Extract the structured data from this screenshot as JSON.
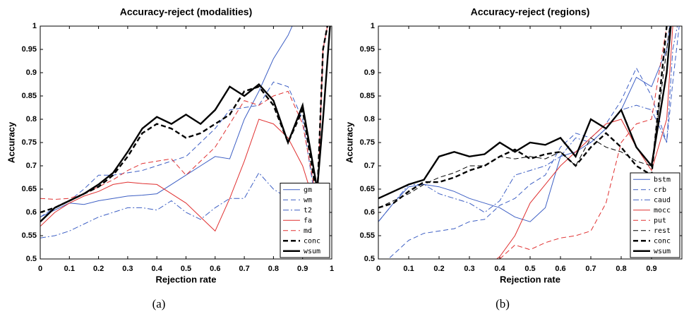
{
  "chart_data": [
    {
      "type": "line",
      "title": "Accuracy-reject (modalities)",
      "xlabel": "Rejection rate",
      "ylabel": "Accuracy",
      "caption": "(a)",
      "x": [
        0,
        0.05,
        0.1,
        0.15,
        0.2,
        0.25,
        0.3,
        0.35,
        0.4,
        0.45,
        0.5,
        0.55,
        0.6,
        0.65,
        0.7,
        0.75,
        0.8,
        0.85,
        0.9,
        0.95,
        0.97,
        1
      ],
      "xlim": [
        0,
        1
      ],
      "xticks": [
        0,
        0.1,
        0.2,
        0.3,
        0.4,
        0.5,
        0.6,
        0.7,
        0.8,
        0.9,
        1
      ],
      "ylim": [
        0.5,
        1
      ],
      "yticks": [
        0.5,
        0.55,
        0.6,
        0.65,
        0.7,
        0.75,
        0.8,
        0.85,
        0.9,
        0.95,
        1
      ],
      "legend": "lower right",
      "series": [
        {
          "name": "gm",
          "color": "#3d5fc4",
          "linestyle": "solid",
          "thick": false,
          "values": [
            0.59,
            0.605,
            0.62,
            0.617,
            0.625,
            0.63,
            0.635,
            0.637,
            0.64,
            0.66,
            0.68,
            0.7,
            0.72,
            0.715,
            0.8,
            0.86,
            0.93,
            0.98,
            1.05,
            null,
            null,
            null
          ]
        },
        {
          "name": "wm",
          "color": "#3d5fc4",
          "linestyle": "dashed",
          "thick": false,
          "values": [
            0.59,
            0.61,
            0.625,
            0.65,
            0.68,
            0.68,
            0.685,
            0.69,
            0.7,
            0.71,
            0.72,
            0.75,
            0.78,
            0.82,
            0.825,
            0.83,
            0.88,
            0.87,
            0.8,
            0.6,
            0.95,
            1.05
          ]
        },
        {
          "name": "t2",
          "color": "#3d5fc4",
          "linestyle": "dashdot",
          "thick": false,
          "values": [
            0.545,
            0.55,
            0.56,
            0.575,
            0.59,
            0.6,
            0.61,
            0.61,
            0.605,
            0.625,
            0.6,
            0.585,
            0.61,
            0.63,
            0.63,
            0.685,
            0.65,
            0.63,
            0.66,
            0.6,
            0.95,
            1.05
          ]
        },
        {
          "name": "fa",
          "color": "#e03030",
          "linestyle": "solid",
          "thick": false,
          "values": [
            0.57,
            0.6,
            0.62,
            0.635,
            0.645,
            0.66,
            0.665,
            0.662,
            0.66,
            0.64,
            0.62,
            0.59,
            0.56,
            0.63,
            0.71,
            0.8,
            0.79,
            0.76,
            0.7,
            0.6,
            0.95,
            1.05
          ]
        },
        {
          "name": "md",
          "color": "#e03030",
          "linestyle": "dashed",
          "thick": false,
          "values": [
            0.63,
            0.628,
            0.63,
            0.64,
            0.655,
            0.67,
            0.69,
            0.705,
            0.71,
            0.715,
            0.68,
            0.71,
            0.74,
            0.79,
            0.84,
            0.83,
            0.85,
            0.86,
            0.79,
            0.62,
            0.95,
            1.05
          ]
        },
        {
          "name": "conc",
          "color": "#000000",
          "linestyle": "dashed",
          "thick": true,
          "values": [
            0.6,
            0.61,
            0.625,
            0.64,
            0.655,
            0.68,
            0.72,
            0.77,
            0.79,
            0.78,
            0.76,
            0.77,
            0.79,
            0.81,
            0.86,
            0.87,
            0.83,
            0.75,
            0.82,
            0.63,
            0.95,
            1.05
          ]
        },
        {
          "name": "wsum",
          "color": "#000000",
          "linestyle": "solid",
          "thick": true,
          "values": [
            0.58,
            0.61,
            0.625,
            0.64,
            0.66,
            0.685,
            0.73,
            0.78,
            0.805,
            0.79,
            0.81,
            0.79,
            0.82,
            0.87,
            0.85,
            0.875,
            0.84,
            0.75,
            0.83,
            0.65,
            0.8,
            1.05
          ]
        }
      ]
    },
    {
      "type": "line",
      "title": "Accuracy-reject (regions)",
      "xlabel": "Rejection rate",
      "ylabel": "Accuracy",
      "caption": "(b)",
      "x": [
        0,
        0.05,
        0.1,
        0.15,
        0.2,
        0.25,
        0.3,
        0.35,
        0.4,
        0.45,
        0.5,
        0.55,
        0.6,
        0.65,
        0.7,
        0.75,
        0.8,
        0.85,
        0.9,
        0.95,
        0.97,
        1
      ],
      "xlim": [
        0,
        1
      ],
      "xticks": [
        0,
        0.1,
        0.2,
        0.3,
        0.4,
        0.5,
        0.6,
        0.7,
        0.8,
        0.9
      ],
      "ylim": [
        0.5,
        1
      ],
      "yticks": [
        0.5,
        0.55,
        0.6,
        0.65,
        0.7,
        0.75,
        0.8,
        0.85,
        0.9,
        0.95,
        1
      ],
      "legend": "lower right",
      "series": [
        {
          "name": "bstm",
          "color": "#3d5fc4",
          "linestyle": "solid",
          "thick": false,
          "values": [
            0.58,
            0.62,
            0.655,
            0.66,
            0.655,
            0.645,
            0.63,
            0.62,
            0.61,
            0.59,
            0.58,
            0.61,
            0.72,
            0.73,
            0.75,
            0.78,
            0.82,
            0.89,
            0.87,
            0.95,
            1.05,
            null
          ]
        },
        {
          "name": "crb",
          "color": "#3d5fc4",
          "linestyle": "dashed",
          "thick": false,
          "values": [
            0.48,
            0.51,
            0.54,
            0.555,
            0.56,
            0.565,
            0.58,
            0.585,
            0.615,
            0.63,
            0.66,
            0.68,
            0.74,
            0.77,
            0.76,
            0.79,
            0.84,
            0.91,
            0.85,
            0.75,
            0.88,
            1.05
          ]
        },
        {
          "name": "caud",
          "color": "#3d5fc4",
          "linestyle": "dashdot",
          "thick": false,
          "values": [
            0.58,
            0.62,
            0.66,
            0.66,
            0.64,
            0.63,
            0.62,
            0.6,
            0.625,
            0.68,
            0.69,
            0.7,
            0.72,
            0.76,
            0.75,
            0.78,
            0.82,
            0.83,
            0.82,
            0.75,
            0.95,
            1.05
          ]
        },
        {
          "name": "mocc",
          "color": "#e03030",
          "linestyle": "solid",
          "thick": false,
          "values": [
            null,
            null,
            null,
            null,
            null,
            null,
            null,
            0.48,
            0.505,
            0.55,
            0.62,
            0.66,
            0.7,
            0.73,
            0.76,
            0.79,
            0.8,
            0.74,
            0.69,
            0.8,
            1.0,
            1.05
          ]
        },
        {
          "name": "put",
          "color": "#e03030",
          "linestyle": "dashed",
          "thick": false,
          "values": [
            null,
            null,
            null,
            null,
            null,
            null,
            null,
            null,
            0.5,
            0.53,
            0.52,
            0.535,
            0.545,
            0.55,
            0.56,
            0.62,
            0.75,
            0.79,
            0.8,
            1.0,
            1.05,
            null
          ]
        },
        {
          "name": "rest",
          "color": "#000000",
          "linestyle": "dashed",
          "thick": false,
          "values": [
            0.61,
            0.625,
            0.64,
            0.66,
            0.675,
            0.685,
            0.7,
            0.7,
            0.72,
            0.715,
            0.72,
            0.715,
            0.73,
            0.7,
            0.76,
            0.74,
            0.73,
            0.71,
            0.7,
            0.95,
            1.05,
            null
          ]
        },
        {
          "name": "conc",
          "color": "#000000",
          "linestyle": "dashed",
          "thick": true,
          "values": [
            0.61,
            0.62,
            0.645,
            0.665,
            0.665,
            0.675,
            0.69,
            0.7,
            0.72,
            0.735,
            0.715,
            0.725,
            0.73,
            0.7,
            0.74,
            0.77,
            0.74,
            0.7,
            0.68,
            1.0,
            1.05,
            null
          ]
        },
        {
          "name": "wsum",
          "color": "#000000",
          "linestyle": "solid",
          "thick": true,
          "values": [
            0.63,
            0.645,
            0.66,
            0.67,
            0.72,
            0.73,
            0.72,
            0.725,
            0.75,
            0.73,
            0.75,
            0.745,
            0.76,
            0.72,
            0.8,
            0.78,
            0.82,
            0.74,
            0.7,
            0.9,
            1.05,
            null
          ]
        }
      ]
    }
  ]
}
